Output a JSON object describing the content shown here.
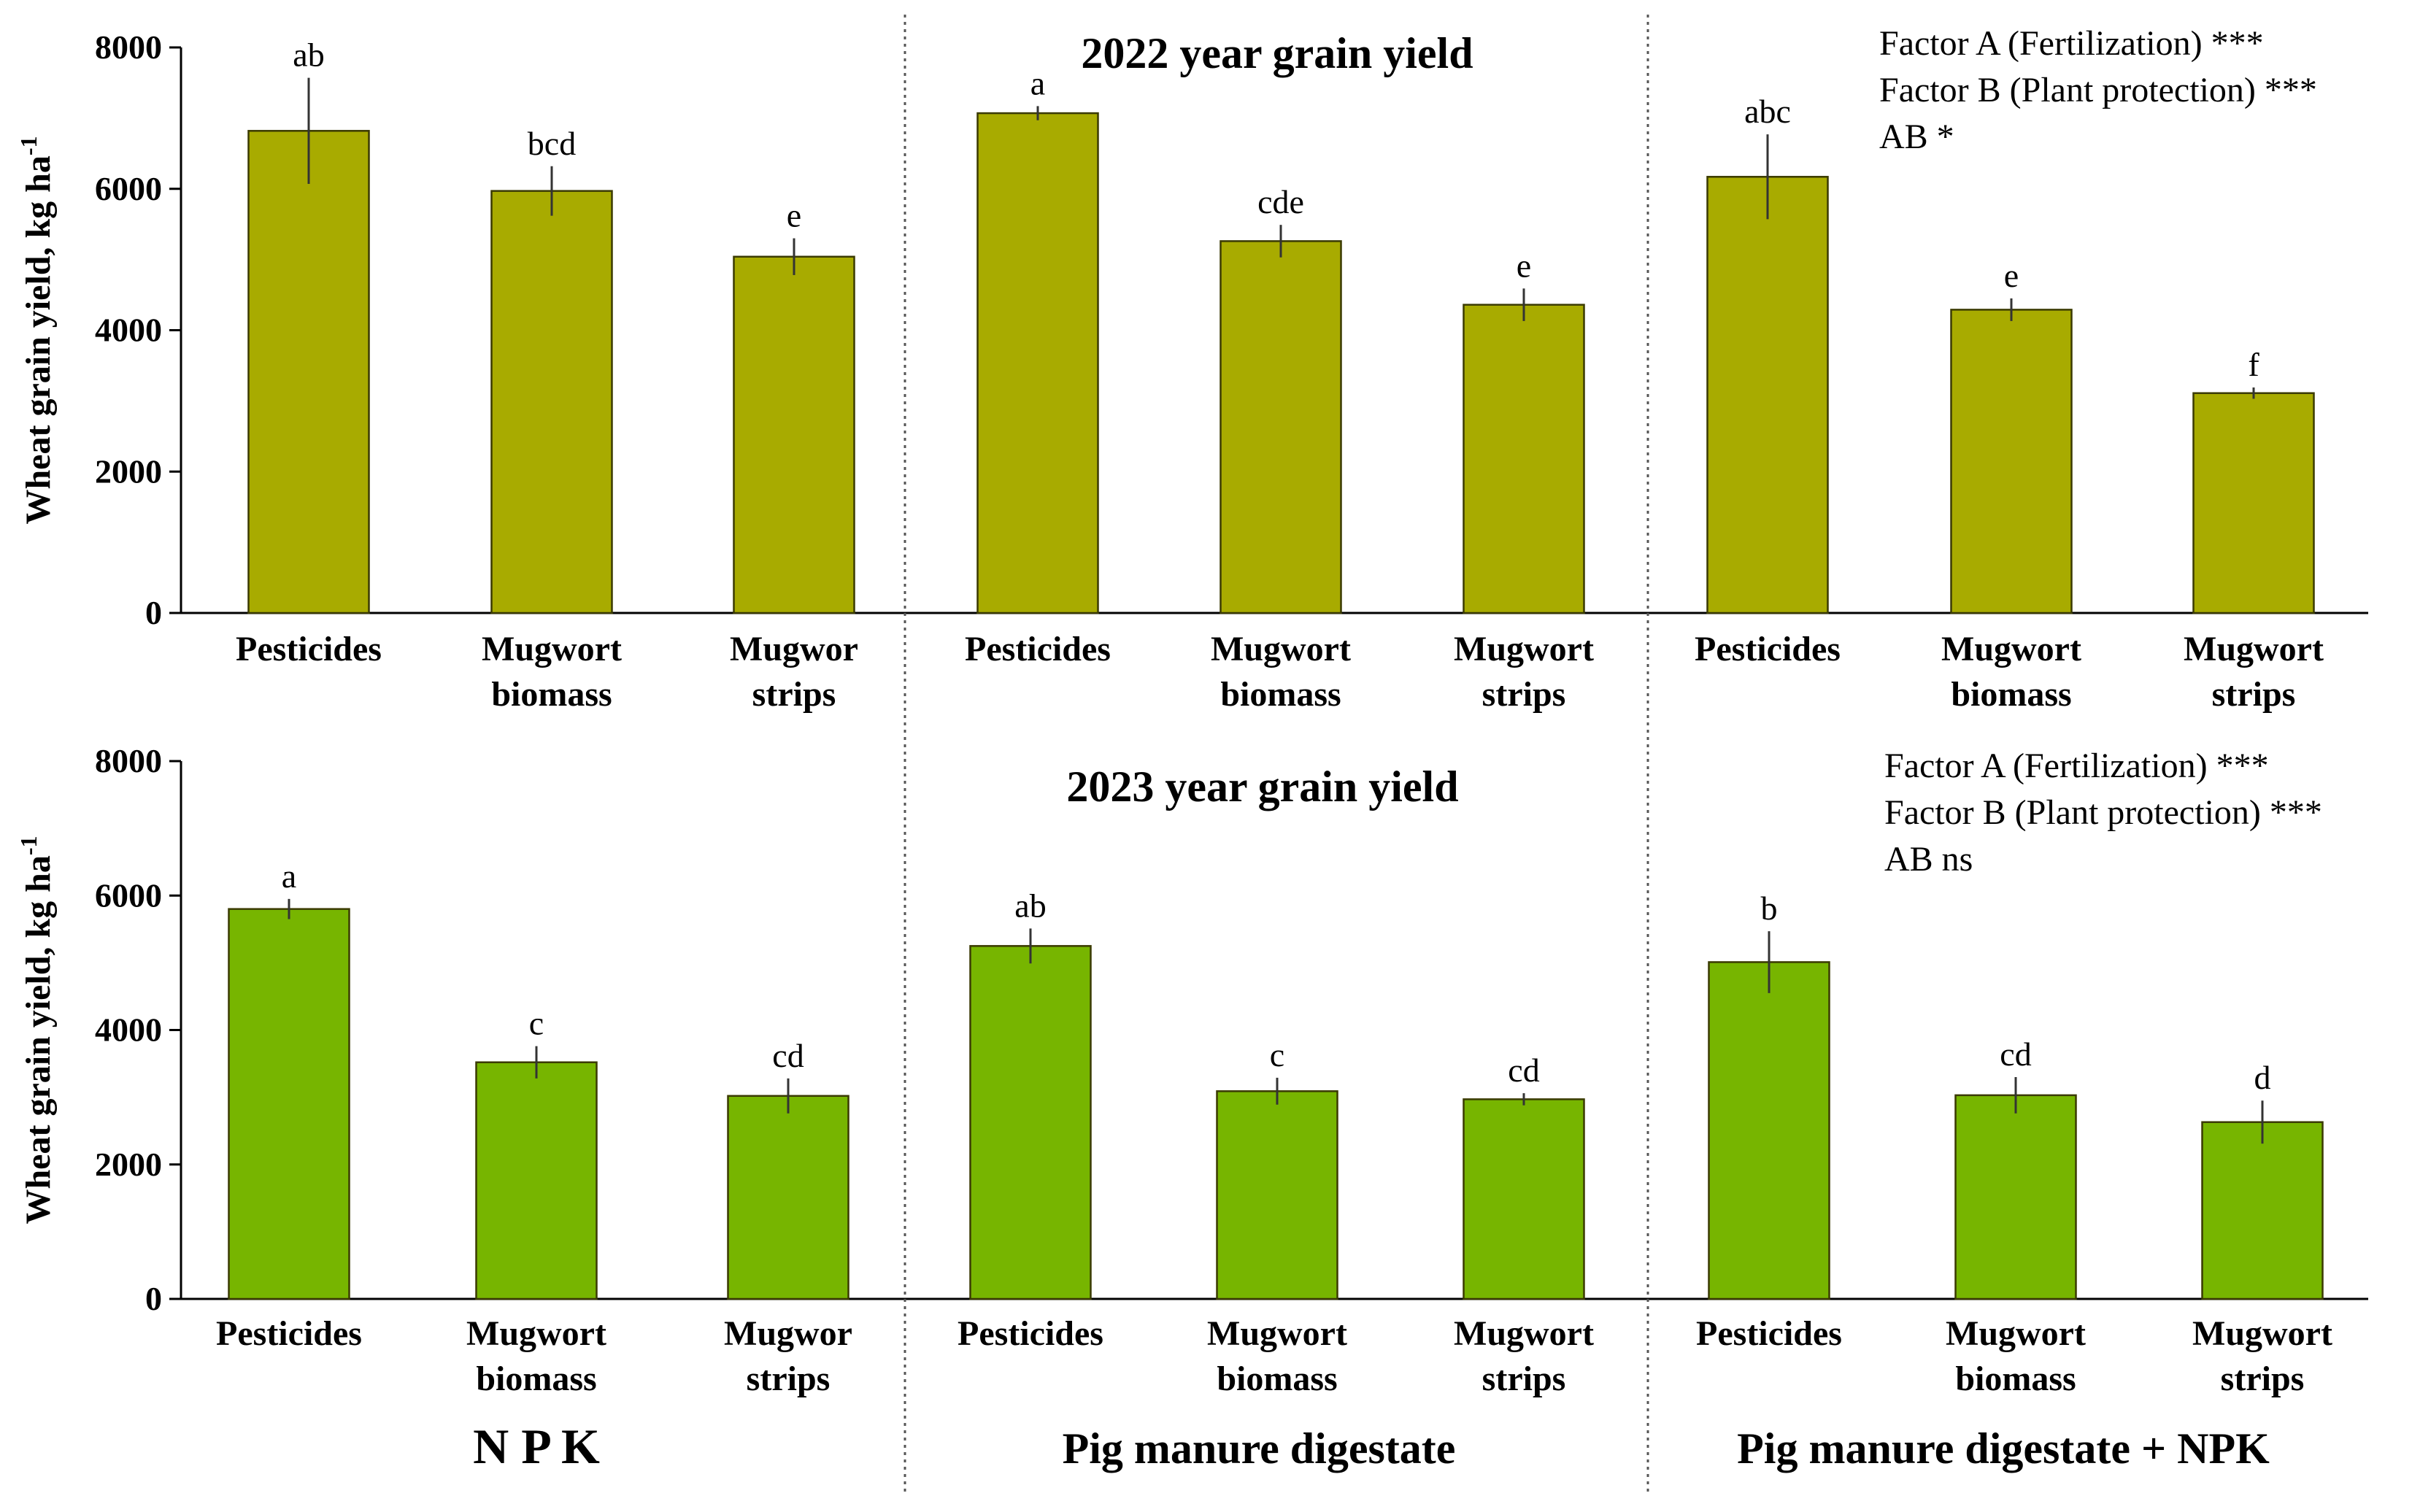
{
  "colors": {
    "bar_2022": "#a8ab00",
    "bar_2023": "#77b500",
    "bar_edge": "#3a3a00",
    "axis": "#000000",
    "divider": "#555555"
  },
  "chart_data": [
    {
      "type": "bar",
      "title": "2022 year grain yield",
      "ylabel": "Wheat grain yield, kg ha",
      "ylabel_superscript": "-1",
      "ylim": [
        0,
        8000
      ],
      "yticks": [
        "0",
        "2000",
        "4000",
        "6000",
        "8000"
      ],
      "groups": [
        "N P K",
        "Pig manure digestate",
        "Pig manure digestate + NPK"
      ],
      "categories": [
        [
          "Pesticides",
          ""
        ],
        [
          "Mugwort",
          "biomass"
        ],
        [
          "Mugwor",
          "strips"
        ],
        [
          "Pesticides",
          ""
        ],
        [
          "Mugwort",
          "biomass"
        ],
        [
          "Mugwort",
          "strips"
        ],
        [
          "Pesticides",
          ""
        ],
        [
          "Mugwort",
          "biomass"
        ],
        [
          "Mugwort",
          "strips"
        ]
      ],
      "values": [
        6820,
        5970,
        5040,
        7070,
        5260,
        4360,
        6170,
        4290,
        3110
      ],
      "errors": [
        750,
        350,
        260,
        100,
        230,
        230,
        600,
        160,
        80
      ],
      "letters": [
        "ab",
        "bcd",
        "e",
        "a",
        "cde",
        "e",
        "abc",
        "e",
        "f"
      ],
      "annotations": [
        "Factor A (Fertilization) ***",
        "Factor B (Plant protection) ***",
        "AB *"
      ]
    },
    {
      "type": "bar",
      "title": "2023 year grain yield",
      "ylabel": "Wheat grain yield, kg ha",
      "ylabel_superscript": "-1",
      "ylim": [
        0,
        8000
      ],
      "yticks": [
        "0",
        "2000",
        "4000",
        "6000",
        "8000"
      ],
      "groups": [
        "N P K",
        "Pig manure digestate",
        "Pig manure digestate + NPK"
      ],
      "categories": [
        [
          "Pesticides",
          ""
        ],
        [
          "Mugwort",
          "biomass"
        ],
        [
          "Mugwor",
          "strips"
        ],
        [
          "Pesticides",
          ""
        ],
        [
          "Mugwort",
          "biomass"
        ],
        [
          "Mugwort",
          "strips"
        ],
        [
          "Pesticides",
          ""
        ],
        [
          "Mugwort",
          "biomass"
        ],
        [
          "Mugwort",
          "strips"
        ]
      ],
      "values": [
        5800,
        3520,
        3020,
        5250,
        3090,
        2970,
        5010,
        3030,
        2630
      ],
      "errors": [
        150,
        240,
        260,
        260,
        200,
        90,
        460,
        270,
        320
      ],
      "letters": [
        "a",
        "c",
        "cd",
        "ab",
        "c",
        "cd",
        "b",
        "cd",
        "d"
      ],
      "annotations": [
        "Factor A (Fertilization) ***",
        "Factor B (Plant protection) ***",
        "AB ns"
      ]
    }
  ]
}
